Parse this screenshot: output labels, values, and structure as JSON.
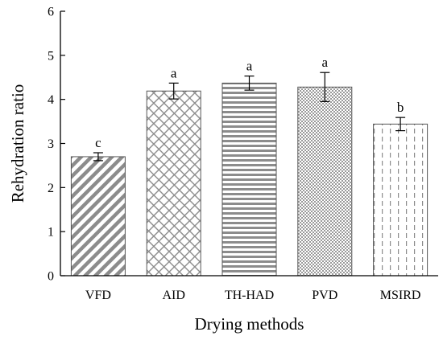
{
  "chart_data": {
    "type": "bar",
    "xlabel": "Drying methods",
    "ylabel": "Rehydration ratio",
    "ylim": [
      0,
      6
    ],
    "yticks": [
      0,
      1,
      2,
      3,
      4,
      5,
      6
    ],
    "grid": false,
    "legend": "none",
    "categories": [
      "VFD",
      "AID",
      "TH-HAD",
      "PVD",
      "MSIRD"
    ],
    "values": [
      2.7,
      4.19,
      4.37,
      4.28,
      3.44
    ],
    "errors": [
      0.09,
      0.18,
      0.16,
      0.33,
      0.15
    ],
    "significance_labels": [
      "c",
      "a",
      "a",
      "a",
      "b"
    ],
    "patterns": [
      "diagonal-stripes",
      "diamond-lattice",
      "horizontal-stripes",
      "fine-dots",
      "vertical-dashes"
    ],
    "colors": {
      "bar_pattern": "#7f7f7f",
      "axis": "#000000",
      "background": "#ffffff"
    }
  }
}
